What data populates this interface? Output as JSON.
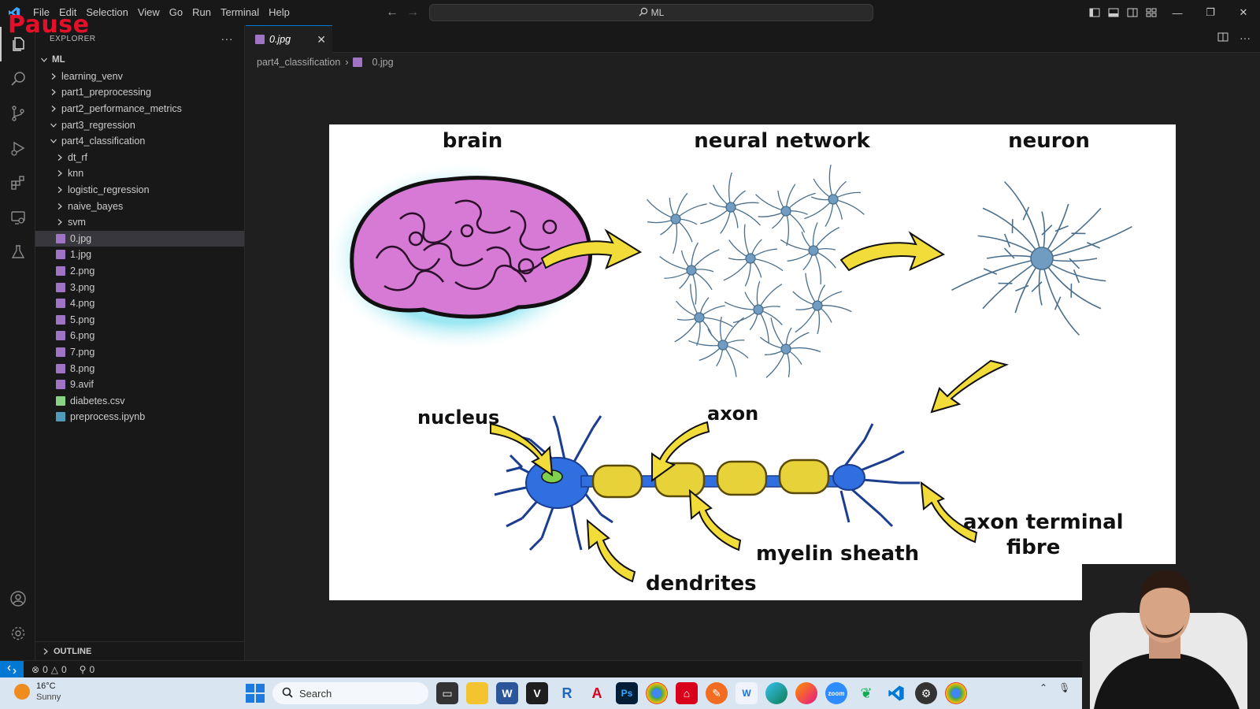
{
  "overlay": {
    "pause_label": "Pause"
  },
  "menu": [
    "File",
    "Edit",
    "Selection",
    "View",
    "Go",
    "Run",
    "Terminal",
    "Help"
  ],
  "command_center": {
    "text": "ML"
  },
  "explorer": {
    "title": "EXPLORER",
    "root": "ML",
    "items": [
      {
        "label": "learning_venv",
        "type": "folder",
        "expanded": false,
        "depth": 1
      },
      {
        "label": "part1_preprocessing",
        "type": "folder",
        "expanded": false,
        "depth": 1
      },
      {
        "label": "part2_performance_metrics",
        "type": "folder",
        "expanded": false,
        "depth": 1
      },
      {
        "label": "part3_regression",
        "type": "folder",
        "expanded": true,
        "depth": 1
      },
      {
        "label": "part4_classification",
        "type": "folder",
        "expanded": true,
        "depth": 1
      },
      {
        "label": "dt_rf",
        "type": "folder",
        "expanded": false,
        "depth": 2
      },
      {
        "label": "knn",
        "type": "folder",
        "expanded": false,
        "depth": 2
      },
      {
        "label": "logistic_regression",
        "type": "folder",
        "expanded": false,
        "depth": 2
      },
      {
        "label": "naive_bayes",
        "type": "folder",
        "expanded": false,
        "depth": 2
      },
      {
        "label": "svm",
        "type": "folder",
        "expanded": false,
        "depth": 2
      },
      {
        "label": "0.jpg",
        "type": "image",
        "depth": 2,
        "selected": true
      },
      {
        "label": "1.jpg",
        "type": "image",
        "depth": 2
      },
      {
        "label": "2.png",
        "type": "image",
        "depth": 2
      },
      {
        "label": "3.png",
        "type": "image",
        "depth": 2
      },
      {
        "label": "4.png",
        "type": "image",
        "depth": 2
      },
      {
        "label": "5.png",
        "type": "image",
        "depth": 2
      },
      {
        "label": "6.png",
        "type": "image",
        "depth": 2
      },
      {
        "label": "7.png",
        "type": "image",
        "depth": 2
      },
      {
        "label": "8.png",
        "type": "image",
        "depth": 2
      },
      {
        "label": "9.avif",
        "type": "image",
        "depth": 2
      },
      {
        "label": "diabetes.csv",
        "type": "csv",
        "depth": 2
      },
      {
        "label": "preprocess.ipynb",
        "type": "notebook",
        "depth": 2
      }
    ],
    "outline_label": "OUTLINE"
  },
  "editor": {
    "tab_label": "0.jpg",
    "breadcrumb": [
      "part4_classification",
      "0.jpg"
    ]
  },
  "diagram": {
    "labels": {
      "brain": "brain",
      "neural_network": "neural network",
      "neuron": "neuron",
      "nucleus": "nucleus",
      "axon": "axon",
      "myelin_sheath": "myelin sheath",
      "dendrites": "dendrites",
      "axon_terminal_line1": "axon terminal",
      "axon_terminal_line2": "fibre"
    }
  },
  "statusbar": {
    "errors": "0",
    "warnings": "0",
    "ports": "0"
  },
  "taskbar": {
    "weather_temp": "16°C",
    "weather_desc": "Sunny",
    "search_placeholder": "Search",
    "apps": [
      "file-explorer",
      "explorer",
      "word",
      "vim",
      "r",
      "acrobat",
      "photoshop",
      "chrome",
      "pdf",
      "pen",
      "wps",
      "edge",
      "firefox",
      "zoom",
      "mongodb",
      "vscode",
      "settings",
      "chrome-alt"
    ]
  },
  "colors": {
    "accent": "#0078d4",
    "brain": "#d67ad6",
    "arrow": "#f2dc3a",
    "neuron_blue": "#2f6fe0",
    "myelin": "#e8d23a",
    "pause_red": "#e4102a"
  }
}
